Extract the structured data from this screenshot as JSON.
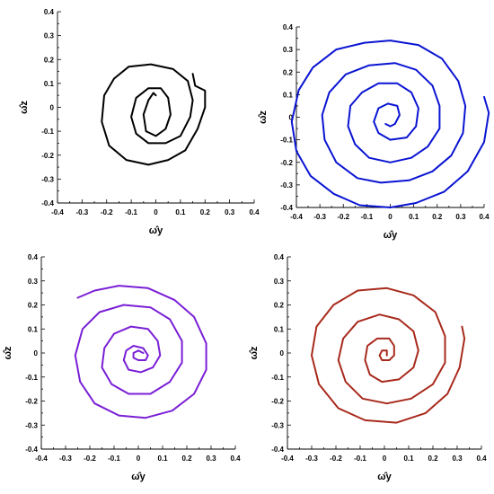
{
  "chart_data": [
    {
      "type": "line",
      "xlabel": "ω̂y",
      "ylabel": "ω̂z",
      "xlim": [
        -0.4,
        0.4
      ],
      "ylim": [
        -0.4,
        0.4
      ],
      "xticks": [
        "-0.4",
        "-0.3",
        "-0.2",
        "-0.1",
        "0",
        "0.1",
        "0.2",
        "0.3",
        "0.4"
      ],
      "yticks": [
        "-0.4",
        "-0.3",
        "-0.2",
        "-0.1",
        "0",
        "0.1",
        "0.2",
        "0.3",
        "0.4"
      ],
      "grid": false,
      "series": [
        {
          "color": "#000000",
          "points": [
            [
              0.15,
              0.14
            ],
            [
              0.16,
              0.09
            ],
            [
              0.2,
              0.07
            ],
            [
              0.2,
              0.0
            ],
            [
              0.17,
              -0.09
            ],
            [
              0.12,
              -0.18
            ],
            [
              0.05,
              -0.22
            ],
            [
              -0.03,
              -0.24
            ],
            [
              -0.12,
              -0.22
            ],
            [
              -0.19,
              -0.16
            ],
            [
              -0.22,
              -0.06
            ],
            [
              -0.21,
              0.05
            ],
            [
              -0.17,
              0.12
            ],
            [
              -0.11,
              0.17
            ],
            [
              -0.02,
              0.18
            ],
            [
              0.07,
              0.16
            ],
            [
              0.13,
              0.11
            ],
            [
              0.15,
              0.03
            ],
            [
              0.14,
              -0.04
            ],
            [
              0.1,
              -0.12
            ],
            [
              0.04,
              -0.15
            ],
            [
              -0.03,
              -0.15
            ],
            [
              -0.08,
              -0.11
            ],
            [
              -0.1,
              -0.04
            ],
            [
              -0.08,
              0.04
            ],
            [
              -0.03,
              0.08
            ],
            [
              0.02,
              0.08
            ],
            [
              0.05,
              0.04
            ],
            [
              0.06,
              -0.03
            ],
            [
              0.04,
              -0.09
            ],
            [
              0.0,
              -0.12
            ],
            [
              -0.04,
              -0.1
            ],
            [
              -0.05,
              -0.03
            ],
            [
              -0.03,
              0.03
            ],
            [
              -0.01,
              0.06
            ],
            [
              0.0,
              0.05
            ]
          ]
        }
      ]
    },
    {
      "type": "line",
      "xlabel": "ω̂y",
      "ylabel": "ω̂z",
      "xlim": [
        -0.4,
        0.4
      ],
      "ylim": [
        -0.4,
        0.4
      ],
      "xticks": [
        "-0.4",
        "-0.3",
        "-0.2",
        "-0.1",
        "0",
        "0.1",
        "0.2",
        "0.3",
        "0.4"
      ],
      "yticks": [
        "-0.4",
        "-0.3",
        "-0.2",
        "-0.1",
        "0",
        "0.1",
        "0.2",
        "0.3",
        "0.4"
      ],
      "grid": false,
      "series": [
        {
          "color": "#0a14d2",
          "points": [
            [
              0.4,
              0.09
            ],
            [
              0.42,
              0.02
            ],
            [
              0.4,
              -0.11
            ],
            [
              0.33,
              -0.24
            ],
            [
              0.23,
              -0.33
            ],
            [
              0.11,
              -0.38
            ],
            [
              0.0,
              -0.4
            ],
            [
              -0.13,
              -0.39
            ],
            [
              -0.24,
              -0.34
            ],
            [
              -0.34,
              -0.26
            ],
            [
              -0.4,
              -0.15
            ],
            [
              -0.42,
              -0.02
            ],
            [
              -0.39,
              0.12
            ],
            [
              -0.33,
              0.22
            ],
            [
              -0.23,
              0.3
            ],
            [
              -0.11,
              0.33
            ],
            [
              0.0,
              0.34
            ],
            [
              0.12,
              0.32
            ],
            [
              0.22,
              0.26
            ],
            [
              0.29,
              0.16
            ],
            [
              0.32,
              0.05
            ],
            [
              0.31,
              -0.07
            ],
            [
              0.26,
              -0.17
            ],
            [
              0.18,
              -0.24
            ],
            [
              0.08,
              -0.28
            ],
            [
              -0.04,
              -0.29
            ],
            [
              -0.14,
              -0.27
            ],
            [
              -0.23,
              -0.2
            ],
            [
              -0.28,
              -0.1
            ],
            [
              -0.29,
              0.01
            ],
            [
              -0.26,
              0.11
            ],
            [
              -0.19,
              0.19
            ],
            [
              -0.09,
              0.23
            ],
            [
              0.02,
              0.24
            ],
            [
              0.11,
              0.21
            ],
            [
              0.18,
              0.14
            ],
            [
              0.21,
              0.05
            ],
            [
              0.21,
              -0.05
            ],
            [
              0.16,
              -0.13
            ],
            [
              0.09,
              -0.18
            ],
            [
              0.0,
              -0.2
            ],
            [
              -0.09,
              -0.18
            ],
            [
              -0.15,
              -0.12
            ],
            [
              -0.18,
              -0.04
            ],
            [
              -0.17,
              0.05
            ],
            [
              -0.12,
              0.11
            ],
            [
              -0.05,
              0.15
            ],
            [
              0.03,
              0.15
            ],
            [
              0.09,
              0.11
            ],
            [
              0.12,
              0.04
            ],
            [
              0.11,
              -0.04
            ],
            [
              0.07,
              -0.09
            ],
            [
              0.0,
              -0.1
            ],
            [
              -0.05,
              -0.07
            ],
            [
              -0.07,
              -0.02
            ],
            [
              -0.05,
              0.04
            ],
            [
              -0.01,
              0.06
            ],
            [
              0.03,
              0.05
            ],
            [
              0.04,
              0.01
            ],
            [
              0.02,
              -0.03
            ],
            [
              0.0,
              -0.04
            ],
            [
              -0.02,
              -0.03
            ]
          ]
        }
      ]
    },
    {
      "type": "line",
      "xlabel": "ω̂y",
      "ylabel": "ω̂z",
      "xlim": [
        -0.4,
        0.4
      ],
      "ylim": [
        -0.4,
        0.4
      ],
      "xticks": [
        "-0.4",
        "-0.3",
        "-0.2",
        "-0.1",
        "0",
        "0.1",
        "0.2",
        "0.3",
        "0.4"
      ],
      "yticks": [
        "-0.4",
        "-0.3",
        "-0.2",
        "-0.1",
        "0",
        "0.1",
        "0.2",
        "0.3",
        "0.4"
      ],
      "grid": false,
      "series": [
        {
          "color": "#7a1fd6",
          "points": [
            [
              -0.25,
              0.23
            ],
            [
              -0.18,
              0.26
            ],
            [
              -0.08,
              0.28
            ],
            [
              0.04,
              0.27
            ],
            [
              0.15,
              0.22
            ],
            [
              0.23,
              0.15
            ],
            [
              0.28,
              0.04
            ],
            [
              0.28,
              -0.07
            ],
            [
              0.23,
              -0.17
            ],
            [
              0.14,
              -0.24
            ],
            [
              0.03,
              -0.27
            ],
            [
              -0.08,
              -0.26
            ],
            [
              -0.18,
              -0.21
            ],
            [
              -0.24,
              -0.12
            ],
            [
              -0.26,
              -0.01
            ],
            [
              -0.23,
              0.1
            ],
            [
              -0.16,
              0.17
            ],
            [
              -0.06,
              0.2
            ],
            [
              0.05,
              0.19
            ],
            [
              0.13,
              0.14
            ],
            [
              0.18,
              0.05
            ],
            [
              0.18,
              -0.04
            ],
            [
              0.13,
              -0.12
            ],
            [
              0.05,
              -0.17
            ],
            [
              -0.04,
              -0.17
            ],
            [
              -0.11,
              -0.13
            ],
            [
              -0.15,
              -0.06
            ],
            [
              -0.14,
              0.02
            ],
            [
              -0.1,
              0.08
            ],
            [
              -0.03,
              0.11
            ],
            [
              0.04,
              0.1
            ],
            [
              0.08,
              0.05
            ],
            [
              0.09,
              -0.01
            ],
            [
              0.06,
              -0.06
            ],
            [
              0.01,
              -0.08
            ],
            [
              -0.04,
              -0.07
            ],
            [
              -0.06,
              -0.03
            ],
            [
              -0.05,
              0.01
            ],
            [
              -0.02,
              0.03
            ],
            [
              0.02,
              0.02
            ],
            [
              0.04,
              -0.01
            ],
            [
              0.03,
              -0.03
            ],
            [
              0.0,
              -0.03
            ],
            [
              -0.02,
              -0.02
            ],
            [
              -0.02,
              0.0
            ],
            [
              0.0,
              0.01
            ],
            [
              0.02,
              0.0
            ]
          ]
        }
      ]
    },
    {
      "type": "line",
      "xlabel": "ω̂y",
      "ylabel": "ω̂z",
      "xlim": [
        -0.4,
        0.4
      ],
      "ylim": [
        -0.4,
        0.4
      ],
      "xticks": [
        "-0.4",
        "-0.3",
        "-0.2",
        "-0.1",
        "0",
        "0.1",
        "0.2",
        "0.3",
        "0.4"
      ],
      "yticks": [
        "-0.4",
        "-0.3",
        "-0.2",
        "-0.1",
        "0",
        "0.1",
        "0.2",
        "0.3",
        "0.4"
      ],
      "grid": false,
      "series": [
        {
          "color": "#a82a1c",
          "points": [
            [
              0.32,
              0.11
            ],
            [
              0.33,
              0.06
            ],
            [
              0.31,
              -0.06
            ],
            [
              0.26,
              -0.17
            ],
            [
              0.17,
              -0.25
            ],
            [
              0.05,
              -0.29
            ],
            [
              -0.08,
              -0.28
            ],
            [
              -0.19,
              -0.23
            ],
            [
              -0.27,
              -0.13
            ],
            [
              -0.3,
              -0.01
            ],
            [
              -0.28,
              0.11
            ],
            [
              -0.21,
              0.2
            ],
            [
              -0.11,
              0.26
            ],
            [
              0.01,
              0.27
            ],
            [
              0.12,
              0.24
            ],
            [
              0.21,
              0.17
            ],
            [
              0.25,
              0.07
            ],
            [
              0.25,
              -0.04
            ],
            [
              0.2,
              -0.13
            ],
            [
              0.11,
              -0.19
            ],
            [
              0.01,
              -0.21
            ],
            [
              -0.09,
              -0.19
            ],
            [
              -0.16,
              -0.12
            ],
            [
              -0.19,
              -0.03
            ],
            [
              -0.17,
              0.06
            ],
            [
              -0.11,
              0.13
            ],
            [
              -0.02,
              0.16
            ],
            [
              0.06,
              0.14
            ],
            [
              0.12,
              0.09
            ],
            [
              0.14,
              0.01
            ],
            [
              0.12,
              -0.06
            ],
            [
              0.06,
              -0.11
            ],
            [
              -0.01,
              -0.12
            ],
            [
              -0.06,
              -0.09
            ],
            [
              -0.08,
              -0.03
            ],
            [
              -0.07,
              0.03
            ],
            [
              -0.03,
              0.06
            ],
            [
              0.02,
              0.06
            ],
            [
              0.04,
              0.03
            ],
            [
              0.04,
              -0.01
            ],
            [
              0.02,
              -0.03
            ],
            [
              -0.01,
              -0.03
            ],
            [
              -0.02,
              -0.01
            ],
            [
              -0.01,
              0.01
            ],
            [
              0.01,
              0.01
            ],
            [
              0.01,
              -0.01
            ]
          ]
        }
      ]
    }
  ]
}
